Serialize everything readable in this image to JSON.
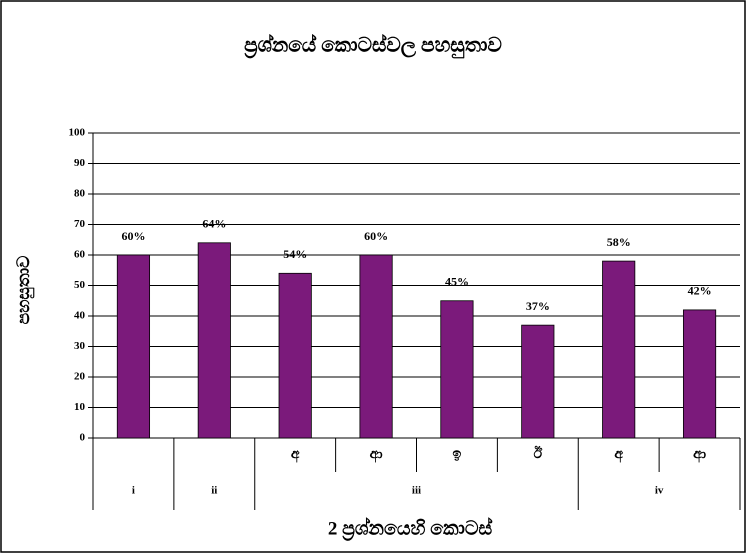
{
  "chart_data": {
    "type": "bar",
    "title": "ප්‍රශ්නයේ කොටස්වල පහසුතාව",
    "y_label": "පහසුතාව",
    "x_label": "2 ප්‍රශ්නයෙහි කොටස්",
    "categories": [
      null,
      null,
      "අ",
      "ආ",
      "ඉ",
      "ඊ",
      "අ",
      "ආ"
    ],
    "group_labels": [
      "i",
      "ii",
      "iii",
      "iv"
    ],
    "group_sizes": [
      1,
      1,
      4,
      2
    ],
    "values": [
      60,
      64,
      54,
      60,
      45,
      37,
      58,
      42
    ],
    "value_labels": [
      "60%",
      "64%",
      "54%",
      "60%",
      "45%",
      "37%",
      "58%",
      "42%"
    ],
    "color": "#7b1a7b",
    "ylim": [
      0,
      100
    ],
    "yticks": [
      0,
      10,
      20,
      30,
      40,
      50,
      60,
      70,
      80,
      90,
      100
    ],
    "grid": true
  }
}
